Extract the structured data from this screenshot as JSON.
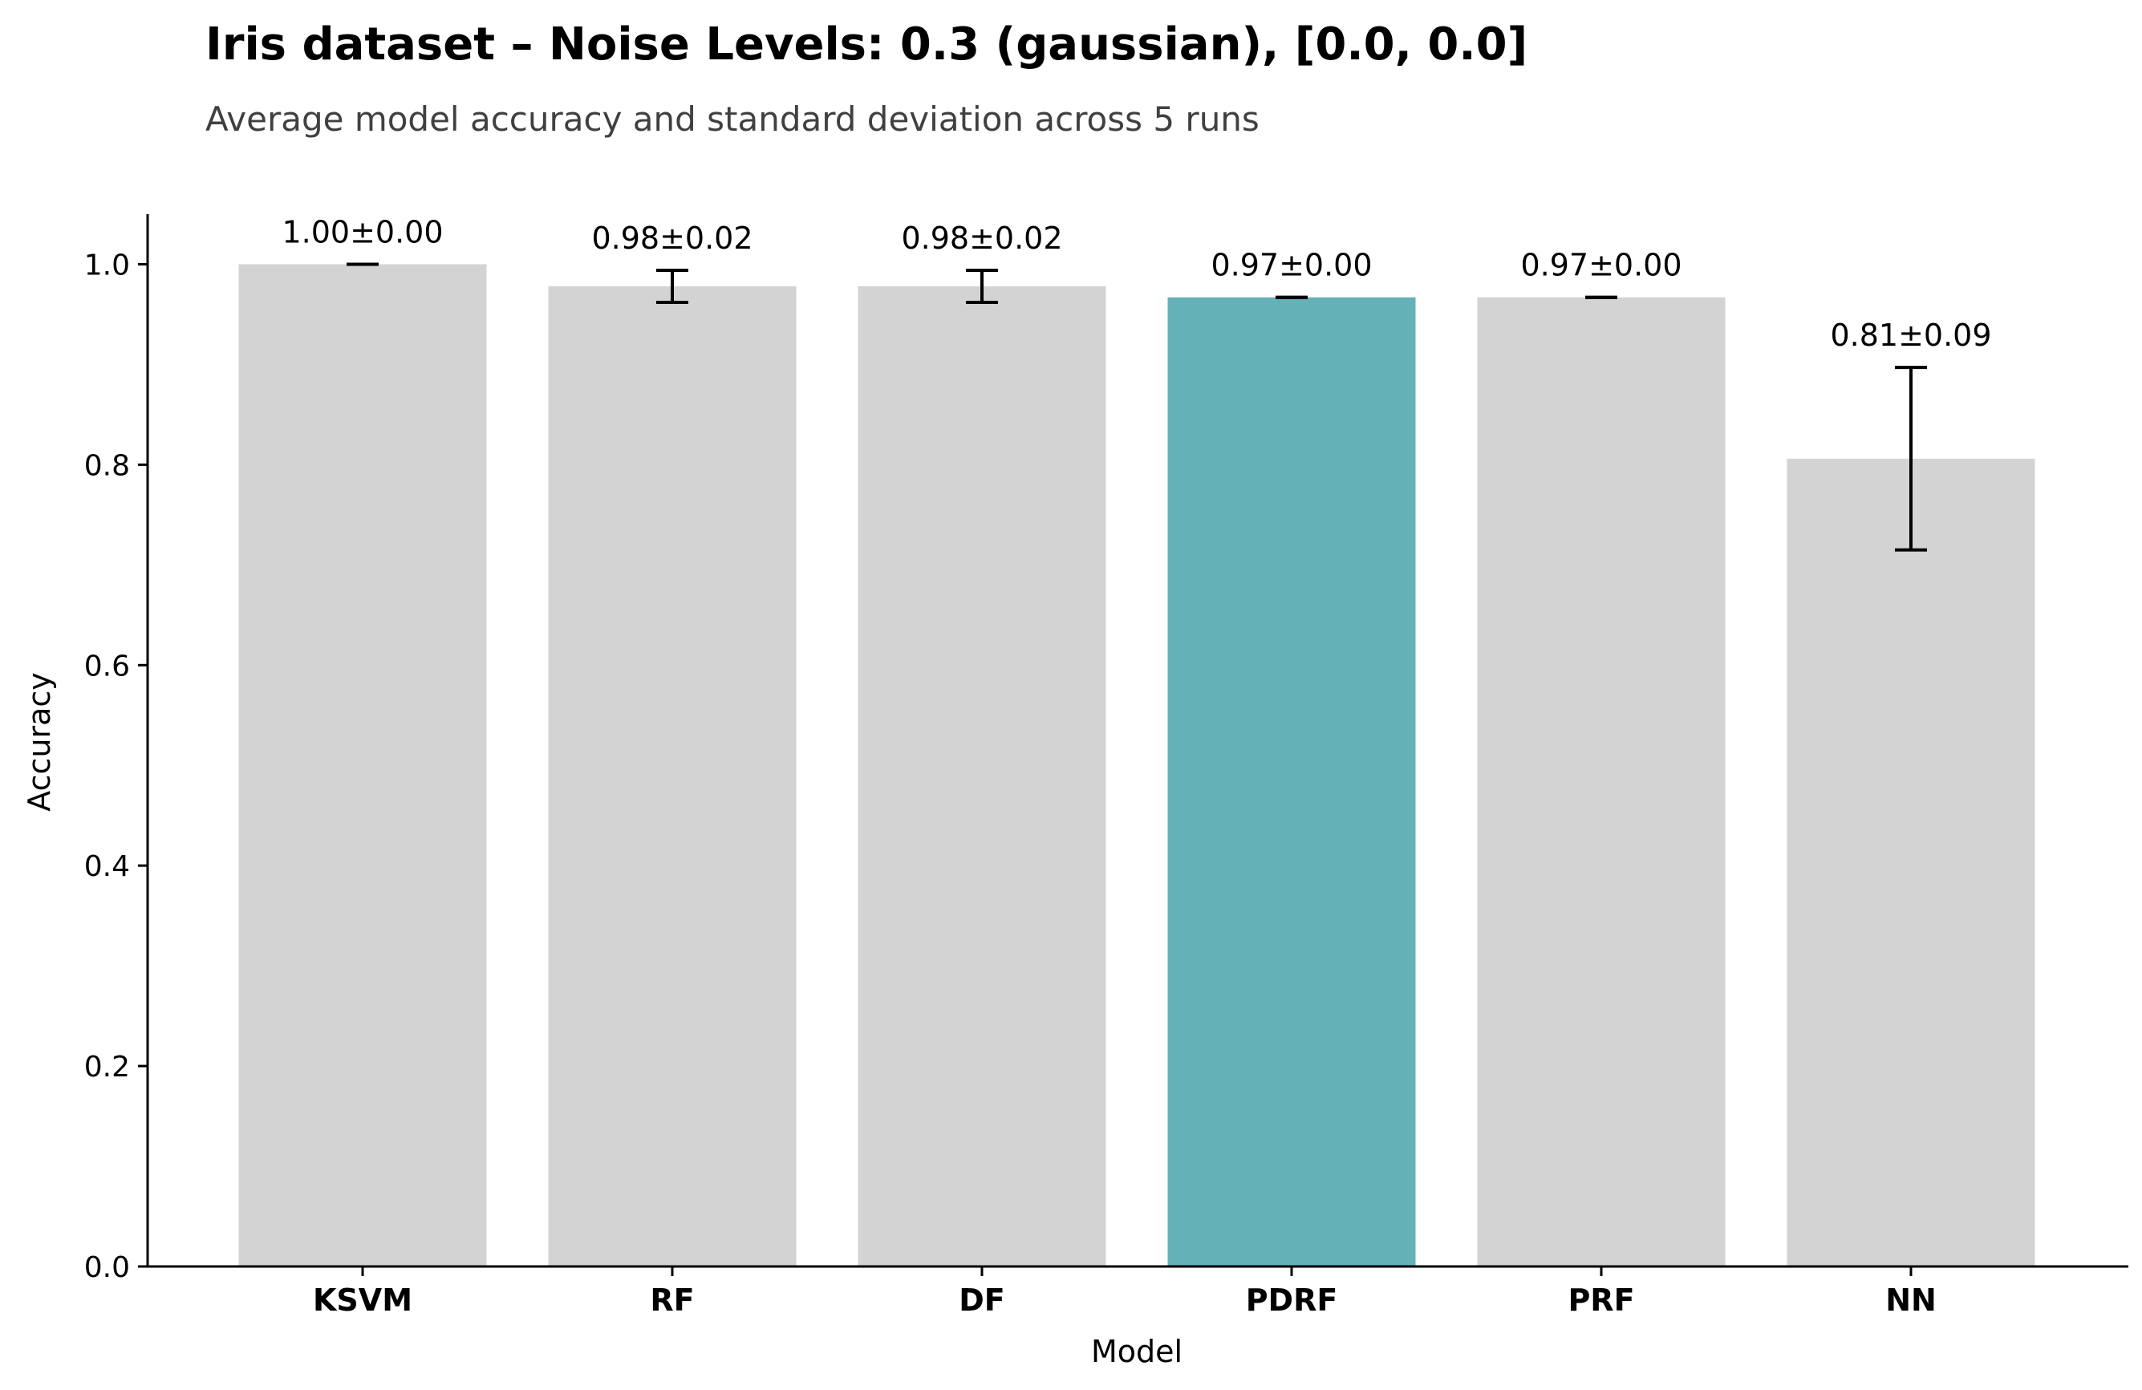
{
  "chart_data": {
    "type": "bar",
    "title": "Iris dataset – Noise Levels: 0.3 (gaussian), [0.0, 0.0]",
    "subtitle": "Average model accuracy and standard deviation across 5 runs",
    "xlabel": "Model",
    "ylabel": "Accuracy",
    "categories": [
      "KSVM",
      "RF",
      "DF",
      "PDRF",
      "PRF",
      "NN"
    ],
    "values": [
      1.0,
      0.978,
      0.978,
      0.967,
      0.967,
      0.806
    ],
    "errors": [
      0.0,
      0.016,
      0.016,
      0.0,
      0.0,
      0.091
    ],
    "value_labels": [
      "1.00±0.00",
      "0.98±0.02",
      "0.98±0.02",
      "0.97±0.00",
      "0.97±0.00",
      "0.81±0.09"
    ],
    "highlight_index": 3,
    "ylim": [
      0,
      1.05
    ],
    "yticks": [
      0.0,
      0.2,
      0.4,
      0.6,
      0.8,
      1.0
    ],
    "ytick_labels": [
      "0.0",
      "0.2",
      "0.4",
      "0.6",
      "0.8",
      "1.0"
    ],
    "grid": false,
    "legend": "none",
    "colors": {
      "bar": "#d3d3d3",
      "highlight": "#64b2b8",
      "error": "#000000",
      "axis": "#000000"
    }
  }
}
